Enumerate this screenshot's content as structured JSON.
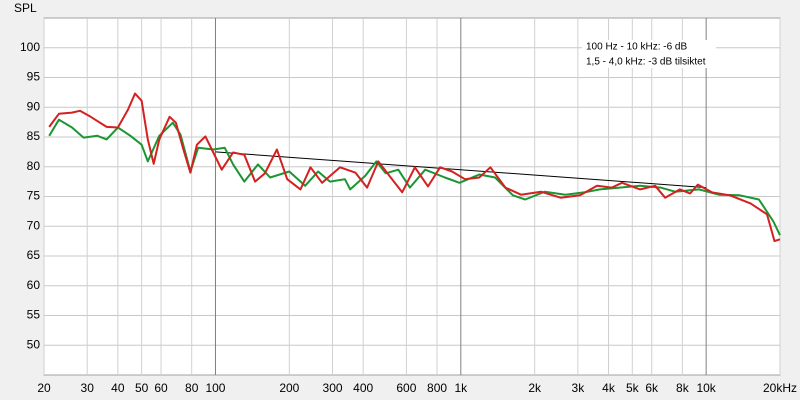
{
  "chart_data": {
    "type": "line",
    "y_axis_label": "SPL",
    "annotations": [
      "100 Hz - 10 kHz: -6 dB",
      "1,5 - 4,0 kHz: -3 dB tilsiktet"
    ],
    "xlog": true,
    "grid": true,
    "xlim": [
      20,
      20000
    ],
    "ylim": [
      45,
      105
    ],
    "xticks": [
      20,
      30,
      40,
      50,
      60,
      80,
      100,
      200,
      300,
      400,
      600,
      800,
      {
        "value": 1000,
        "label": "1k"
      },
      {
        "value": 2000,
        "label": "2k"
      },
      {
        "value": 3000,
        "label": "3k"
      },
      {
        "value": 4000,
        "label": "4k"
      },
      {
        "value": 5000,
        "label": "5k"
      },
      {
        "value": 6000,
        "label": "6k"
      },
      {
        "value": 8000,
        "label": "8k"
      },
      {
        "value": 10000,
        "label": "10k"
      },
      {
        "value": 20000,
        "label": "20kHz"
      }
    ],
    "yticks": [
      50,
      55,
      60,
      65,
      70,
      75,
      80,
      85,
      90,
      95,
      100
    ],
    "series": [
      {
        "color": "#1a9632",
        "x": [
          21,
          23,
          26,
          29,
          33,
          36,
          40,
          45,
          50,
          53,
          59,
          67,
          72,
          79,
          85,
          98,
          109,
          118,
          131,
          149,
          167,
          200,
          232,
          262,
          293,
          337,
          354,
          408,
          453,
          494,
          556,
          620,
          716,
          861,
          988,
          1190,
          1380,
          1630,
          1830,
          2200,
          2670,
          3200,
          3690,
          4440,
          5380,
          6520,
          7470,
          9350,
          11270,
          13700,
          16400,
          18800,
          20000
        ],
        "values": [
          85.2,
          87.9,
          86.6,
          84.9,
          85.2,
          84.6,
          86.6,
          85.2,
          83.7,
          80.9,
          85.2,
          87.4,
          85.4,
          79.2,
          83.2,
          82.9,
          83.2,
          80.4,
          77.5,
          80.4,
          78.2,
          79.2,
          76.8,
          79.2,
          77.5,
          77.9,
          76.2,
          78.5,
          80.9,
          78.9,
          79.5,
          76.5,
          79.5,
          78.2,
          77.3,
          78.7,
          78.2,
          75.2,
          74.5,
          75.8,
          75.3,
          75.7,
          76.2,
          76.5,
          76.8,
          76.5,
          75.8,
          76.2,
          75.3,
          75.2,
          74.5,
          70.8,
          68.5
        ]
      },
      {
        "color": "#d42020",
        "x": [
          21,
          23,
          26,
          28,
          31,
          36,
          40,
          44,
          47,
          50,
          53,
          56,
          59,
          65,
          69,
          74,
          79,
          84,
          91,
          98,
          106,
          118,
          131,
          145,
          159,
          178,
          196,
          222,
          244,
          272,
          322,
          372,
          415,
          461,
          518,
          577,
          650,
          735,
          823,
          921,
          1040,
          1190,
          1320,
          1520,
          1760,
          2120,
          2550,
          3060,
          3590,
          4120,
          4540,
          5380,
          6200,
          6800,
          7820,
          8600,
          9250,
          10550,
          12500,
          15200,
          17700,
          19000,
          20000
        ],
        "values": [
          86.7,
          88.9,
          89.1,
          89.4,
          88.4,
          86.7,
          86.6,
          89.6,
          92.3,
          91.1,
          84.6,
          80.5,
          84.6,
          88.4,
          87.4,
          82.9,
          79.0,
          83.7,
          85.1,
          82.4,
          79.5,
          82.4,
          82.0,
          77.5,
          78.9,
          82.9,
          77.9,
          76.2,
          79.9,
          77.3,
          79.9,
          79.0,
          76.5,
          80.9,
          78.2,
          75.7,
          79.9,
          76.7,
          79.9,
          79.2,
          77.9,
          78.2,
          79.9,
          76.5,
          75.3,
          75.8,
          74.8,
          75.2,
          76.8,
          76.5,
          77.3,
          76.2,
          76.8,
          74.8,
          76.2,
          75.5,
          77.0,
          75.7,
          75.2,
          73.8,
          72.0,
          67.5,
          67.8
        ]
      }
    ],
    "reference_line": {
      "color": "#000000",
      "x": [
        100,
        10000
      ],
      "values": [
        82.5,
        76.5
      ]
    }
  }
}
